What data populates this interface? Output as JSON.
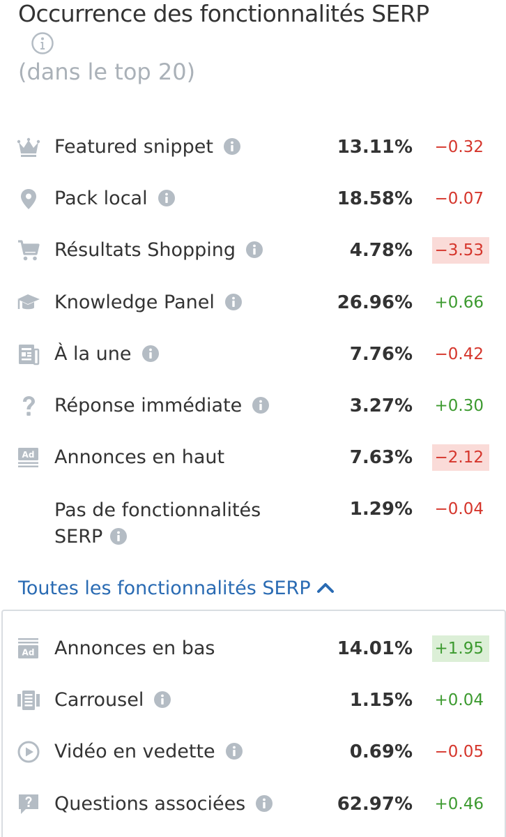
{
  "header": {
    "title": "Occurrence des fonctionnalités SERP",
    "subtitle": "(dans le top 20)",
    "info_icon": "info-icon"
  },
  "features": [
    {
      "icon": "crown-icon",
      "label": "Featured snippet",
      "info": true,
      "percent": "13.11%",
      "delta": "−0.32",
      "trend": "negative",
      "highlight": false
    },
    {
      "icon": "map-pin-icon",
      "label": "Pack local",
      "info": true,
      "percent": "18.58%",
      "delta": "−0.07",
      "trend": "negative",
      "highlight": false
    },
    {
      "icon": "shopping-cart-icon",
      "label": "Résultats Shopping",
      "info": true,
      "percent": "4.78%",
      "delta": "−3.53",
      "trend": "negative",
      "highlight": true
    },
    {
      "icon": "graduation-cap-icon",
      "label": "Knowledge Panel",
      "info": true,
      "percent": "26.96%",
      "delta": "+0.66",
      "trend": "positive",
      "highlight": false
    },
    {
      "icon": "newspaper-icon",
      "label": "À la une",
      "info": true,
      "percent": "7.76%",
      "delta": "−0.42",
      "trend": "negative",
      "highlight": false
    },
    {
      "icon": "question-mark-icon",
      "label": "Réponse immédiate",
      "info": true,
      "percent": "3.27%",
      "delta": "+0.30",
      "trend": "positive",
      "highlight": false
    },
    {
      "icon": "ad-top-icon",
      "label": "Annonces en haut",
      "info": false,
      "percent": "7.63%",
      "delta": "−2.12",
      "trend": "negative",
      "highlight": true
    },
    {
      "icon": "",
      "label_line1": "Pas de fonctionnalités",
      "label_line2": "SERP",
      "info": true,
      "percent": "1.29%",
      "delta": "−0.04",
      "trend": "negative",
      "highlight": false
    }
  ],
  "toggle": {
    "label": "Toutes les fonctionnalités SERP",
    "icon": "chevron-up-icon"
  },
  "more_features": [
    {
      "icon": "ad-bottom-icon",
      "label": "Annonces en bas",
      "info": false,
      "percent": "14.01%",
      "delta": "+1.95",
      "trend": "positive",
      "highlight": true
    },
    {
      "icon": "carousel-icon",
      "label": "Carrousel",
      "info": true,
      "percent": "1.15%",
      "delta": "+0.04",
      "trend": "positive",
      "highlight": false
    },
    {
      "icon": "play-circle-icon",
      "label": "Vidéo en vedette",
      "info": true,
      "percent": "0.69%",
      "delta": "−0.05",
      "trend": "negative",
      "highlight": false
    },
    {
      "icon": "question-bubble-icon",
      "label": "Questions associées",
      "info": true,
      "percent": "62.97%",
      "delta": "+0.46",
      "trend": "positive",
      "highlight": false
    }
  ],
  "colors": {
    "negative": "#d5352b",
    "positive": "#3c9a2f",
    "negative_bg": "#fadbd8",
    "positive_bg": "#dcefd7",
    "link": "#2a6bb3",
    "icon": "#b4bcc4"
  }
}
